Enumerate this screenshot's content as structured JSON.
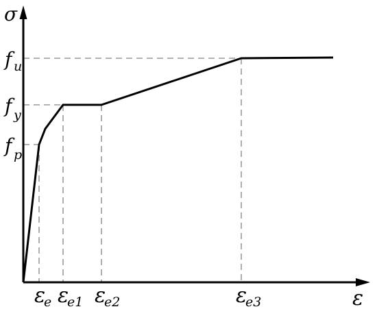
{
  "chart_data": {
    "type": "line",
    "title": "",
    "xlabel": "ε",
    "ylabel": "σ",
    "grid": false,
    "legend": "none",
    "series": [
      {
        "points": [
          {
            "x": "0",
            "y": "0"
          },
          {
            "x": "ε_e",
            "y": "f_p"
          },
          {
            "x": "",
            "y": ""
          },
          {
            "x": "ε_e1",
            "y": "f_y"
          },
          {
            "x": "ε_e2",
            "y": "f_y"
          },
          {
            "x": "ε_e3",
            "y": "f_u"
          },
          {
            "x": "",
            "y": "f_u"
          }
        ]
      }
    ],
    "x_ticks": [
      {
        "main": "ε",
        "sub": "e"
      },
      {
        "main": "ε",
        "sub": "e1"
      },
      {
        "main": "ε",
        "sub": "e2"
      },
      {
        "main": "ε",
        "sub": "e3"
      }
    ],
    "y_ticks": [
      {
        "main": "f",
        "sub": "p"
      },
      {
        "main": "f",
        "sub": "y"
      },
      {
        "main": "f",
        "sub": "u"
      }
    ],
    "colors": {
      "curve": "#000000",
      "axes": "#000000",
      "guides": "#999999"
    }
  }
}
